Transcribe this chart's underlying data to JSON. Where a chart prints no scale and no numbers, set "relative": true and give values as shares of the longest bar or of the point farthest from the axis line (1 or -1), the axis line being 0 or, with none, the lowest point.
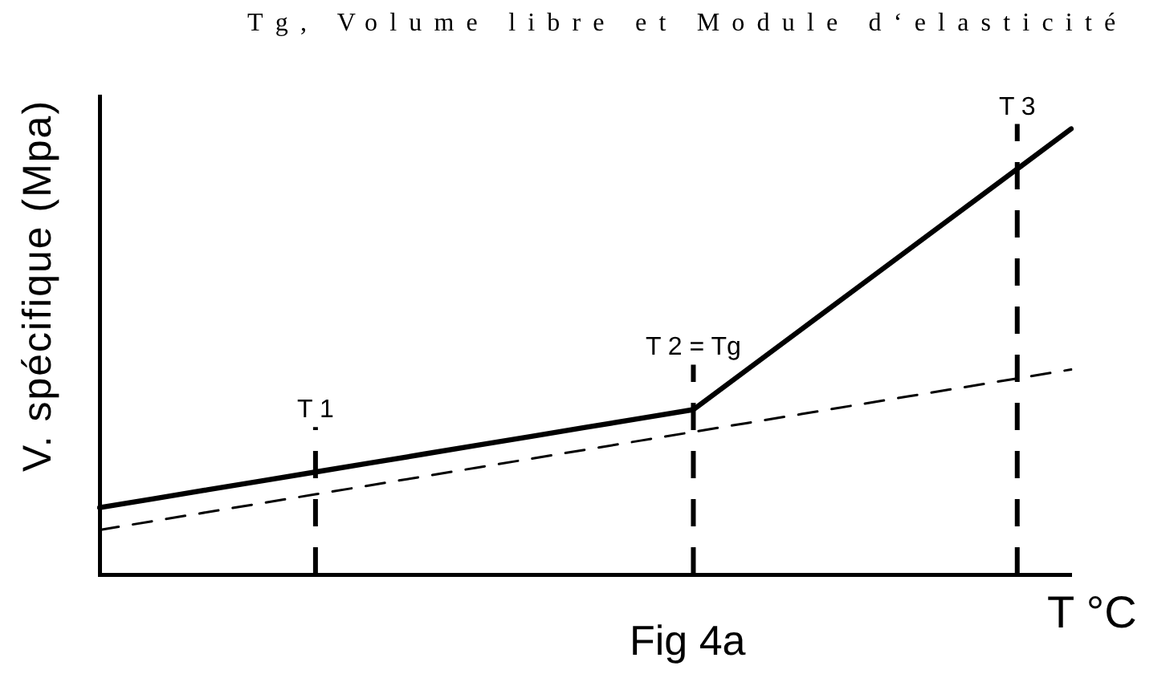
{
  "chart_data": {
    "type": "line",
    "title": "Tg, Volume libre et Module d‘elasticité",
    "xlabel": "T °C",
    "ylabel": "V. spécifique (Mpa)",
    "annotations": [
      "Fig 4a"
    ],
    "categories": [
      null,
      null,
      null,
      null,
      "T 1",
      null,
      null,
      null,
      null,
      null,
      null,
      "T 2 = Tg",
      null,
      null,
      null,
      null,
      null,
      "T 3",
      null
    ],
    "relative": true,
    "marker": "none",
    "tick_labels": false,
    "series": [
      {
        "color": "#000000",
        "line_style": "solid",
        "values": [
          0.15,
          0.17,
          0.19,
          0.21,
          0.23,
          0.25,
          0.27,
          0.29,
          0.31,
          0.33,
          0.35,
          0.37,
          0.46,
          0.55,
          0.64,
          0.73,
          0.82,
          0.91,
          1
        ]
      },
      {
        "color": "#000000",
        "line_style": "dashed",
        "values": [
          0.1,
          0.12,
          0.14,
          0.16,
          0.18,
          0.2,
          0.22,
          0.24,
          0.26,
          0.28,
          0.3,
          0.32,
          0.34,
          0.36,
          0.38,
          0.4,
          0.42,
          0.44,
          0.46
        ]
      }
    ],
    "ref_lines": [
      {
        "axis": "x",
        "value": "T 1",
        "color": "#000000",
        "line_style": "dashed"
      },
      {
        "axis": "x",
        "value": "T 2 = Tg",
        "color": "#000000",
        "line_style": "dashed"
      },
      {
        "axis": "x",
        "value": "T 3",
        "color": "#000000",
        "line_style": "dashed"
      }
    ]
  }
}
